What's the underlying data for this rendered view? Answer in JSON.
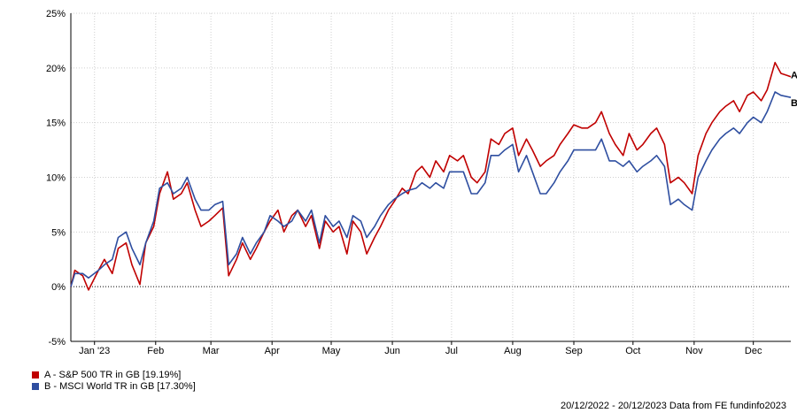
{
  "chart_data": {
    "type": "line",
    "y_unit": "%",
    "yticks": [
      25,
      20,
      15,
      10,
      5,
      0,
      -5
    ],
    "ytick_labels": [
      "25%",
      "20%",
      "15%",
      "10%",
      "5%",
      "0%",
      "-5%"
    ],
    "ylim": [
      -5,
      25
    ],
    "xlim": [
      "2022-12-20",
      "2023-12-20"
    ],
    "xtick_labels": [
      "Jan '23",
      "Feb",
      "Mar",
      "Apr",
      "May",
      "Jun",
      "Jul",
      "Aug",
      "Sep",
      "Oct",
      "Nov",
      "Dec"
    ],
    "xtick_dates": [
      "2023-01-01",
      "2023-02-01",
      "2023-03-01",
      "2023-04-01",
      "2023-05-01",
      "2023-06-01",
      "2023-07-01",
      "2023-08-01",
      "2023-09-01",
      "2023-10-01",
      "2023-11-01",
      "2023-12-01"
    ],
    "grid": true,
    "zero_line": "dotted",
    "legend_position": "bottom-left",
    "series": [
      {
        "name": "A - S&P 500 TR in GB [19.19%]",
        "end_label": "A",
        "color": "#c00000",
        "x": [
          "2022-12-20",
          "2022-12-22",
          "2022-12-26",
          "2022-12-29",
          "2023-01-03",
          "2023-01-06",
          "2023-01-10",
          "2023-01-13",
          "2023-01-17",
          "2023-01-20",
          "2023-01-24",
          "2023-01-27",
          "2023-01-31",
          "2023-02-03",
          "2023-02-07",
          "2023-02-10",
          "2023-02-14",
          "2023-02-17",
          "2023-02-21",
          "2023-02-24",
          "2023-02-28",
          "2023-03-03",
          "2023-03-07",
          "2023-03-10",
          "2023-03-14",
          "2023-03-17",
          "2023-03-21",
          "2023-03-24",
          "2023-03-28",
          "2023-03-31",
          "2023-04-04",
          "2023-04-07",
          "2023-04-11",
          "2023-04-14",
          "2023-04-18",
          "2023-04-21",
          "2023-04-25",
          "2023-04-28",
          "2023-05-02",
          "2023-05-05",
          "2023-05-09",
          "2023-05-12",
          "2023-05-16",
          "2023-05-19",
          "2023-05-23",
          "2023-05-26",
          "2023-05-30",
          "2023-06-02",
          "2023-06-06",
          "2023-06-09",
          "2023-06-13",
          "2023-06-16",
          "2023-06-20",
          "2023-06-23",
          "2023-06-27",
          "2023-06-30",
          "2023-07-04",
          "2023-07-07",
          "2023-07-11",
          "2023-07-14",
          "2023-07-18",
          "2023-07-21",
          "2023-07-25",
          "2023-07-28",
          "2023-08-01",
          "2023-08-04",
          "2023-08-08",
          "2023-08-11",
          "2023-08-15",
          "2023-08-18",
          "2023-08-22",
          "2023-08-25",
          "2023-08-29",
          "2023-09-01",
          "2023-09-05",
          "2023-09-08",
          "2023-09-12",
          "2023-09-15",
          "2023-09-19",
          "2023-09-22",
          "2023-09-26",
          "2023-09-29",
          "2023-10-03",
          "2023-10-06",
          "2023-10-10",
          "2023-10-13",
          "2023-10-17",
          "2023-10-20",
          "2023-10-24",
          "2023-10-27",
          "2023-10-31",
          "2023-11-03",
          "2023-11-07",
          "2023-11-10",
          "2023-11-14",
          "2023-11-17",
          "2023-11-21",
          "2023-11-24",
          "2023-11-28",
          "2023-12-01",
          "2023-12-05",
          "2023-12-08",
          "2023-12-12",
          "2023-12-15",
          "2023-12-20"
        ],
        "values": [
          0.0,
          1.5,
          1.0,
          -0.3,
          1.5,
          2.5,
          1.2,
          3.5,
          4.0,
          2.0,
          0.2,
          4.0,
          5.5,
          8.5,
          10.5,
          8.0,
          8.5,
          9.5,
          7.0,
          5.5,
          6.0,
          6.5,
          7.2,
          1.0,
          2.5,
          4.0,
          2.5,
          3.5,
          5.0,
          6.0,
          7.0,
          5.0,
          6.5,
          7.0,
          5.5,
          6.5,
          3.5,
          6.0,
          5.0,
          5.5,
          3.0,
          6.0,
          5.0,
          3.0,
          4.5,
          5.5,
          7.0,
          7.8,
          9.0,
          8.5,
          10.5,
          11.0,
          10.0,
          11.5,
          10.5,
          12.0,
          11.5,
          12.0,
          10.0,
          9.5,
          10.5,
          13.5,
          13.0,
          14.0,
          14.5,
          12.0,
          13.5,
          12.5,
          11.0,
          11.5,
          12.0,
          13.0,
          14.0,
          14.8,
          14.5,
          14.5,
          15.0,
          16.0,
          14.0,
          13.0,
          12.0,
          14.0,
          12.5,
          13.0,
          14.0,
          14.5,
          13.0,
          9.5,
          10.0,
          9.5,
          8.5,
          12.0,
          14.0,
          15.0,
          16.0,
          16.5,
          17.0,
          16.0,
          17.5,
          17.8,
          17.0,
          18.0,
          20.5,
          19.5,
          19.2
        ]
      },
      {
        "name": "B - MSCI World TR in GB [17.30%]",
        "end_label": "B",
        "color": "#2e4ea0",
        "x": [
          "2022-12-20",
          "2022-12-22",
          "2022-12-26",
          "2022-12-29",
          "2023-01-03",
          "2023-01-06",
          "2023-01-10",
          "2023-01-13",
          "2023-01-17",
          "2023-01-20",
          "2023-01-24",
          "2023-01-27",
          "2023-01-31",
          "2023-02-03",
          "2023-02-07",
          "2023-02-10",
          "2023-02-14",
          "2023-02-17",
          "2023-02-21",
          "2023-02-24",
          "2023-02-28",
          "2023-03-03",
          "2023-03-07",
          "2023-03-10",
          "2023-03-14",
          "2023-03-17",
          "2023-03-21",
          "2023-03-24",
          "2023-03-28",
          "2023-03-31",
          "2023-04-04",
          "2023-04-07",
          "2023-04-11",
          "2023-04-14",
          "2023-04-18",
          "2023-04-21",
          "2023-04-25",
          "2023-04-28",
          "2023-05-02",
          "2023-05-05",
          "2023-05-09",
          "2023-05-12",
          "2023-05-16",
          "2023-05-19",
          "2023-05-23",
          "2023-05-26",
          "2023-05-30",
          "2023-06-02",
          "2023-06-06",
          "2023-06-09",
          "2023-06-13",
          "2023-06-16",
          "2023-06-20",
          "2023-06-23",
          "2023-06-27",
          "2023-06-30",
          "2023-07-04",
          "2023-07-07",
          "2023-07-11",
          "2023-07-14",
          "2023-07-18",
          "2023-07-21",
          "2023-07-25",
          "2023-07-28",
          "2023-08-01",
          "2023-08-04",
          "2023-08-08",
          "2023-08-11",
          "2023-08-15",
          "2023-08-18",
          "2023-08-22",
          "2023-08-25",
          "2023-08-29",
          "2023-09-01",
          "2023-09-05",
          "2023-09-08",
          "2023-09-12",
          "2023-09-15",
          "2023-09-19",
          "2023-09-22",
          "2023-09-26",
          "2023-09-29",
          "2023-10-03",
          "2023-10-06",
          "2023-10-10",
          "2023-10-13",
          "2023-10-17",
          "2023-10-20",
          "2023-10-24",
          "2023-10-27",
          "2023-10-31",
          "2023-11-03",
          "2023-11-07",
          "2023-11-10",
          "2023-11-14",
          "2023-11-17",
          "2023-11-21",
          "2023-11-24",
          "2023-11-28",
          "2023-12-01",
          "2023-12-05",
          "2023-12-08",
          "2023-12-12",
          "2023-12-15",
          "2023-12-20"
        ],
        "values": [
          0.0,
          1.2,
          1.2,
          0.8,
          1.5,
          2.0,
          2.5,
          4.5,
          5.0,
          3.5,
          2.0,
          4.0,
          6.0,
          9.0,
          9.5,
          8.5,
          9.0,
          10.0,
          8.0,
          7.0,
          7.0,
          7.5,
          7.8,
          2.0,
          3.0,
          4.5,
          3.0,
          4.0,
          5.0,
          6.5,
          6.0,
          5.5,
          6.0,
          7.0,
          6.0,
          7.0,
          4.0,
          6.5,
          5.5,
          6.0,
          4.5,
          6.5,
          6.0,
          4.5,
          5.5,
          6.5,
          7.5,
          8.0,
          8.5,
          8.8,
          9.0,
          9.5,
          9.0,
          9.5,
          9.0,
          10.5,
          10.5,
          10.5,
          8.5,
          8.5,
          9.5,
          12.0,
          12.0,
          12.5,
          13.0,
          10.5,
          12.0,
          10.5,
          8.5,
          8.5,
          9.5,
          10.5,
          11.5,
          12.5,
          12.5,
          12.5,
          12.5,
          13.5,
          11.5,
          11.5,
          11.0,
          11.5,
          10.5,
          11.0,
          11.5,
          12.0,
          11.0,
          7.5,
          8.0,
          7.5,
          7.0,
          10.0,
          11.5,
          12.5,
          13.5,
          14.0,
          14.5,
          14.0,
          15.0,
          15.5,
          15.0,
          16.0,
          17.8,
          17.5,
          17.3
        ]
      }
    ]
  },
  "legend": {
    "items": [
      {
        "label": "A - S&P 500 TR in GB [19.19%]",
        "color": "#c00000"
      },
      {
        "label": "B - MSCI World TR in GB [17.30%]",
        "color": "#2e4ea0"
      }
    ]
  },
  "footer": {
    "text": "20/12/2022 - 20/12/2023 Data from FE fundinfo2023"
  }
}
